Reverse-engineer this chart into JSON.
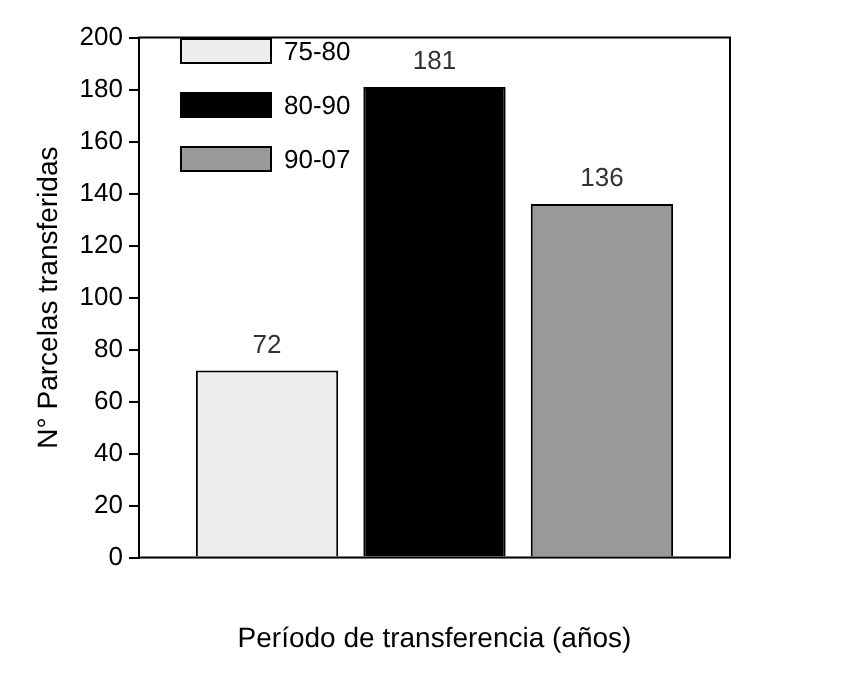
{
  "chart_data": {
    "type": "bar",
    "xlabel": "Período de transferencia (años)",
    "ylabel": "N° Parcelas transferidas",
    "categories": [
      null
    ],
    "series": [
      {
        "name": "75-80",
        "color": "#eeeeee",
        "values": [
          72
        ]
      },
      {
        "name": "80-90",
        "color": "#000000",
        "values": [
          181
        ]
      },
      {
        "name": "90-07",
        "color": "#999999",
        "values": [
          136
        ]
      }
    ],
    "ylim": [
      0,
      200
    ],
    "yticks": [
      0,
      20,
      40,
      60,
      80,
      100,
      120,
      140,
      160,
      180,
      200
    ],
    "grid": false,
    "legend": "top left",
    "data_labels": true
  }
}
